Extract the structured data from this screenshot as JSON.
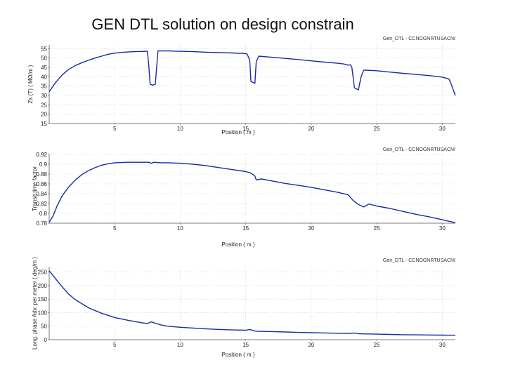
{
  "slide_title": "GEN DTL solution on design constrain",
  "chart_data": [
    {
      "type": "line",
      "legend": "Gen_DTL - CCNOGNRTUSACNI",
      "xlabel": "Position ( m )",
      "ylabel": "Zs (T) ( MΩ/m )",
      "xlim": [
        0,
        31
      ],
      "ylim": [
        15,
        57
      ],
      "xticks": [
        5,
        10,
        15,
        20,
        25,
        30
      ],
      "yticks": [
        15,
        20,
        25,
        30,
        35,
        40,
        45,
        50,
        55
      ],
      "series": [
        {
          "name": "Zs",
          "x": [
            0,
            0.5,
            1,
            1.5,
            2,
            2.5,
            3,
            3.5,
            4,
            4.5,
            5,
            5.5,
            6,
            6.5,
            7,
            7.5,
            7.6,
            7.7,
            7.9,
            8.1,
            8.2,
            8.3,
            9,
            10,
            11,
            12,
            13,
            14,
            14.8,
            15.1,
            15.3,
            15.4,
            15.7,
            15.8,
            16,
            17,
            18,
            19,
            20,
            21,
            22,
            22.5,
            22.8,
            23,
            23.1,
            23.3,
            23.6,
            23.8,
            24,
            24.2,
            25,
            26,
            27,
            28,
            29,
            30,
            30.5,
            30.6,
            31
          ],
          "y": [
            32,
            37,
            41,
            44,
            46,
            47.5,
            48.8,
            50,
            51,
            52,
            52.6,
            53,
            53.2,
            53.4,
            53.5,
            53.6,
            46,
            36,
            35.5,
            36,
            45,
            53.8,
            53.8,
            53.6,
            53.4,
            53.1,
            52.9,
            52.7,
            52.5,
            52.2,
            49,
            37.5,
            36.5,
            48,
            51,
            50.4,
            49.8,
            49.2,
            48.5,
            47.8,
            47.2,
            46.8,
            46.2,
            46.4,
            45,
            34,
            33,
            40,
            43.5,
            43.5,
            43.2,
            42.5,
            41.8,
            41.2,
            40.6,
            39.8,
            38.8,
            37.5,
            30
          ]
        }
      ]
    },
    {
      "type": "line",
      "legend": "Gen_DTL - CCNOGNRTUSACNI",
      "xlabel": "Position ( m )",
      "ylabel": "Transit time factor",
      "xlim": [
        0,
        31
      ],
      "ylim": [
        0.78,
        0.92
      ],
      "xticks": [
        5,
        10,
        15,
        20,
        25,
        30
      ],
      "yticks": [
        0.78,
        0.8,
        0.82,
        0.84,
        0.86,
        0.88,
        0.9,
        0.92
      ],
      "ytick_labels": [
        "0.78",
        "0.8",
        "0.82",
        "0.84",
        "0.86",
        "0.88",
        "0.9",
        "0.92"
      ],
      "series": [
        {
          "name": "T",
          "x": [
            0,
            0.3,
            0.6,
            1,
            1.5,
            2,
            2.5,
            3,
            3.5,
            4,
            4.5,
            5,
            6,
            7,
            7.6,
            7.8,
            8,
            8.5,
            9,
            10,
            11,
            12,
            13,
            14,
            15,
            15.4,
            15.7,
            15.8,
            16.2,
            17,
            18,
            19,
            20,
            21,
            22,
            22.8,
            23.2,
            23.6,
            24,
            24.4,
            25,
            26,
            27,
            28,
            29,
            30,
            31
          ],
          "y": [
            0.782,
            0.795,
            0.815,
            0.836,
            0.854,
            0.868,
            0.879,
            0.887,
            0.893,
            0.898,
            0.901,
            0.903,
            0.904,
            0.904,
            0.904,
            0.902,
            0.904,
            0.903,
            0.903,
            0.902,
            0.9,
            0.897,
            0.893,
            0.889,
            0.885,
            0.882,
            0.876,
            0.868,
            0.87,
            0.866,
            0.861,
            0.857,
            0.853,
            0.848,
            0.843,
            0.838,
            0.826,
            0.818,
            0.813,
            0.819,
            0.815,
            0.81,
            0.804,
            0.798,
            0.793,
            0.787,
            0.781
          ]
        }
      ]
    },
    {
      "type": "line",
      "legend": "Gen_DTL - CCNOGNRTUSACNI",
      "xlabel": "Position ( m )",
      "ylabel": "Long. phase Adv. per meter ( deg/m )",
      "xlim": [
        0,
        31
      ],
      "ylim": [
        0,
        270
      ],
      "xticks": [
        5,
        10,
        15,
        20,
        25,
        30
      ],
      "yticks": [
        0,
        50,
        100,
        150,
        200,
        250
      ],
      "series": [
        {
          "name": "Phase advance",
          "x": [
            0,
            0.5,
            1,
            1.5,
            2,
            3,
            4,
            5,
            6,
            7,
            7.5,
            7.8,
            8.1,
            8.5,
            9,
            10,
            11,
            12,
            13,
            14,
            15,
            15.3,
            15.7,
            16,
            17,
            18,
            19,
            20,
            21,
            22,
            23,
            23.3,
            23.6,
            24,
            25,
            26,
            27,
            28,
            29,
            30,
            31
          ],
          "y": [
            255,
            225,
            195,
            168,
            148,
            118,
            98,
            82,
            72,
            63,
            60,
            66,
            61,
            55,
            50,
            46,
            43,
            40,
            38,
            36,
            35,
            38,
            32,
            31,
            30,
            28.5,
            27,
            26,
            25,
            24,
            23,
            25,
            22,
            21.5,
            20.5,
            19.5,
            18.5,
            18,
            17.5,
            17,
            16.5
          ]
        }
      ]
    }
  ]
}
